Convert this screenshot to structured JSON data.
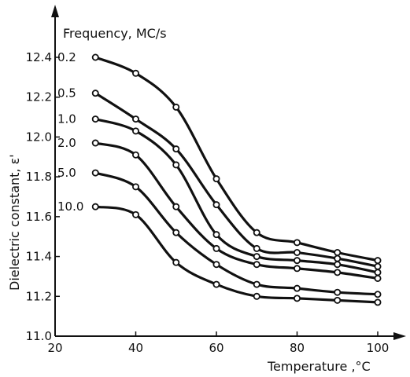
{
  "chart_data": {
    "type": "line",
    "xlabel": "Temperature ,°C",
    "ylabel": "Dielectric  constant, ε'",
    "legend_title": "Frequency, MC/s",
    "xlim": [
      20,
      100
    ],
    "ylim": [
      11.0,
      12.4
    ],
    "xticks": [
      "20",
      "40",
      "60",
      "80",
      "100"
    ],
    "yticks": [
      "11.0",
      "11.2",
      "11.4",
      "11.6",
      "11.8",
      "12.0",
      "12.2",
      "12.4"
    ],
    "x": [
      30,
      40,
      50,
      60,
      70,
      80,
      90,
      100
    ],
    "grid": false,
    "legend_position": "curve-labels-left",
    "series": [
      {
        "name": "0.2",
        "values": [
          12.4,
          12.32,
          12.15,
          11.79,
          11.52,
          11.47,
          11.42,
          11.38
        ]
      },
      {
        "name": "0.5",
        "values": [
          12.22,
          12.09,
          11.94,
          11.66,
          11.44,
          11.42,
          11.39,
          11.35
        ]
      },
      {
        "name": "1.0",
        "values": [
          12.09,
          12.03,
          11.86,
          11.51,
          11.4,
          11.38,
          11.36,
          11.32
        ]
      },
      {
        "name": "2.0",
        "values": [
          11.97,
          11.91,
          11.65,
          11.44,
          11.36,
          11.34,
          11.32,
          11.29
        ]
      },
      {
        "name": "5.0",
        "values": [
          11.82,
          11.75,
          11.52,
          11.36,
          11.26,
          11.24,
          11.22,
          11.21
        ]
      },
      {
        "name": "10.0",
        "values": [
          11.65,
          11.61,
          11.37,
          11.26,
          11.2,
          11.19,
          11.18,
          11.17
        ]
      }
    ]
  }
}
